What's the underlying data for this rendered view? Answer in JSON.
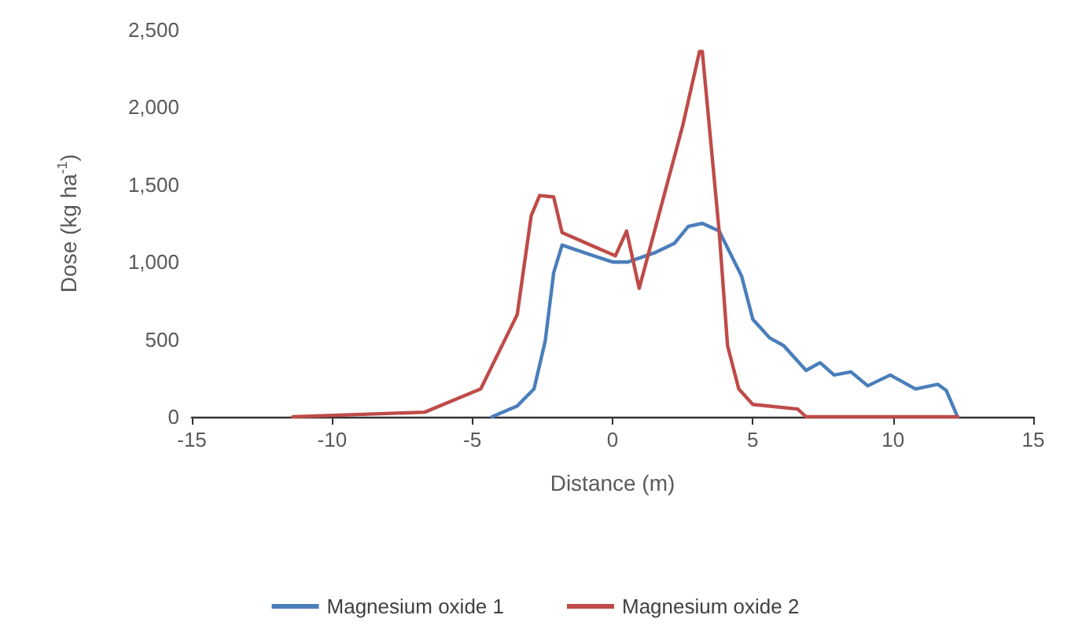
{
  "chart_data": {
    "type": "line",
    "xlabel": "Distance (m)",
    "ylabel": "Dose (kg ha$^{-1}$)",
    "xlim": [
      -15,
      15
    ],
    "xticks": [
      -15,
      -10,
      -5,
      0,
      5,
      10,
      15
    ],
    "ylim": [
      0,
      2500
    ],
    "yticks": [
      {
        "value": 0,
        "label": "0"
      },
      {
        "value": 500,
        "label": "500"
      },
      {
        "value": 1000,
        "label": "1,000"
      },
      {
        "value": 1500,
        "label": "1,500"
      },
      {
        "value": 2000,
        "label": "2,000"
      },
      {
        "value": 2500,
        "label": "2,500"
      }
    ],
    "grid": false,
    "legend": "bottom",
    "marker": "none",
    "line_style": "solid",
    "series": [
      {
        "name": "Magnesium oxide 1",
        "color": "#4a7ebb",
        "x": [
          -4.3,
          -3.4,
          -2.8,
          -2.4,
          -2.1,
          -1.8,
          -1,
          0,
          0.55,
          1.5,
          2.2,
          2.7,
          3.2,
          3.8,
          4.6,
          5.0,
          5.6,
          6.1,
          6.9,
          7.4,
          7.9,
          8.5,
          9.1,
          9.9,
          10.8,
          11.6,
          11.9,
          12.3
        ],
        "values": [
          0,
          70,
          180,
          490,
          930,
          1110,
          1060,
          1000,
          1000,
          1060,
          1120,
          1230,
          1250,
          1200,
          910,
          630,
          510,
          460,
          300,
          350,
          270,
          290,
          200,
          270,
          180,
          210,
          170,
          0
        ]
      },
      {
        "name": "Magnesium oxide 2",
        "color": "#be4b48",
        "x": [
          -11.4,
          -6.7,
          -4.7,
          -3.4,
          -2.9,
          -2.6,
          -2.1,
          -1.8,
          0.1,
          0.5,
          0.95,
          2.5,
          3.1,
          3.2,
          3.8,
          4.1,
          4.5,
          5.0,
          6.6,
          6.9,
          12.3
        ],
        "values": [
          0,
          30,
          180,
          660,
          1300,
          1430,
          1420,
          1190,
          1040,
          1200,
          830,
          1880,
          2360,
          2360,
          1200,
          460,
          180,
          80,
          50,
          0,
          0
        ]
      }
    ]
  }
}
